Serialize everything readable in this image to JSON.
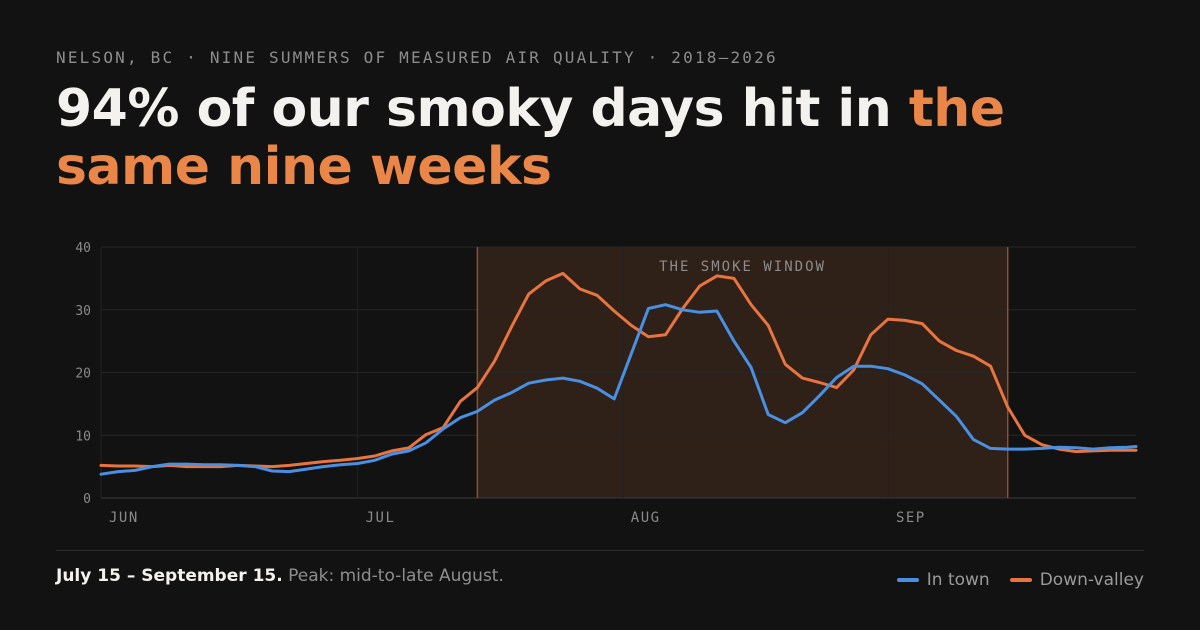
{
  "eyebrow": "NELSON, BC · NINE SUMMERS OF MEASURED AIR QUALITY · 2018–2026",
  "headline": {
    "lead": "94% of our smoky days hit in ",
    "highlight": "the same nine weeks"
  },
  "caption": {
    "strong": "July 15 – September 15.",
    "rest": " Peak: mid-to-late August."
  },
  "colors": {
    "in_town": "#4a90e2",
    "down_valley": "#e8743f",
    "highlight": "#ea8648",
    "window_fill": "#2f2018",
    "window_edge": "#8a5232"
  },
  "chart_data": {
    "type": "line",
    "xlim": [
      "2026-06-01",
      "2026-09-30"
    ],
    "ylim": [
      0,
      40
    ],
    "yticks": [
      0,
      10,
      20,
      30,
      40
    ],
    "xticks": [
      {
        "date": "2026-06-01",
        "label": "JUN"
      },
      {
        "date": "2026-07-01",
        "label": "JUL"
      },
      {
        "date": "2026-08-01",
        "label": "AUG"
      },
      {
        "date": "2026-09-01",
        "label": "SEP"
      }
    ],
    "grid": true,
    "legend": "bottom-right",
    "window": {
      "start": "2026-07-15",
      "end": "2026-09-15",
      "label": "THE SMOKE WINDOW"
    },
    "x": [
      "2026-06-01",
      "2026-06-03",
      "2026-06-05",
      "2026-06-07",
      "2026-06-09",
      "2026-06-11",
      "2026-06-13",
      "2026-06-15",
      "2026-06-17",
      "2026-06-19",
      "2026-06-21",
      "2026-06-23",
      "2026-06-25",
      "2026-06-27",
      "2026-06-29",
      "2026-07-01",
      "2026-07-03",
      "2026-07-05",
      "2026-07-07",
      "2026-07-09",
      "2026-07-11",
      "2026-07-13",
      "2026-07-15",
      "2026-07-17",
      "2026-07-19",
      "2026-07-21",
      "2026-07-23",
      "2026-07-25",
      "2026-07-27",
      "2026-07-29",
      "2026-07-31",
      "2026-08-02",
      "2026-08-04",
      "2026-08-06",
      "2026-08-08",
      "2026-08-10",
      "2026-08-12",
      "2026-08-14",
      "2026-08-16",
      "2026-08-18",
      "2026-08-20",
      "2026-08-22",
      "2026-08-24",
      "2026-08-26",
      "2026-08-28",
      "2026-08-30",
      "2026-09-01",
      "2026-09-03",
      "2026-09-05",
      "2026-09-07",
      "2026-09-09",
      "2026-09-11",
      "2026-09-13",
      "2026-09-15",
      "2026-09-17",
      "2026-09-19",
      "2026-09-21",
      "2026-09-23",
      "2026-09-25",
      "2026-09-27",
      "2026-09-29",
      "2026-09-30"
    ],
    "series": [
      {
        "name": "In town",
        "values": [
          3.8,
          4.2,
          4.4,
          5.0,
          5.4,
          5.4,
          5.3,
          5.3,
          5.2,
          5.0,
          4.3,
          4.2,
          4.6,
          5.0,
          5.3,
          5.5,
          6.0,
          7.0,
          7.5,
          8.8,
          11.0,
          12.8,
          13.8,
          15.6,
          16.8,
          18.3,
          18.8,
          19.1,
          18.6,
          17.5,
          15.8,
          23.0,
          30.2,
          30.8,
          30.0,
          29.6,
          29.8,
          25.0,
          20.8,
          13.3,
          12.0,
          13.6,
          16.3,
          19.2,
          21.0,
          21.0,
          20.6,
          19.6,
          18.2,
          15.6,
          13.0,
          9.3,
          7.9,
          7.8,
          7.8,
          7.9,
          8.1,
          8.0,
          7.8,
          8.0,
          8.1,
          8.2
        ]
      },
      {
        "name": "Down-valley",
        "values": [
          5.2,
          5.1,
          5.1,
          5.0,
          5.2,
          5.0,
          5.0,
          5.0,
          5.2,
          5.1,
          5.0,
          5.2,
          5.5,
          5.8,
          6.0,
          6.3,
          6.7,
          7.5,
          8.0,
          10.1,
          11.2,
          15.4,
          17.6,
          21.8,
          27.3,
          32.5,
          34.6,
          35.8,
          33.3,
          32.3,
          29.8,
          27.5,
          25.7,
          26.0,
          30.2,
          33.8,
          35.4,
          35.0,
          30.8,
          27.5,
          21.3,
          19.1,
          18.4,
          17.6,
          20.4,
          26.0,
          28.5,
          28.3,
          27.8,
          25.0,
          23.5,
          22.6,
          21.0,
          14.5,
          10.0,
          8.5,
          7.8,
          7.4,
          7.5,
          7.6,
          7.6,
          7.6
        ]
      }
    ]
  }
}
